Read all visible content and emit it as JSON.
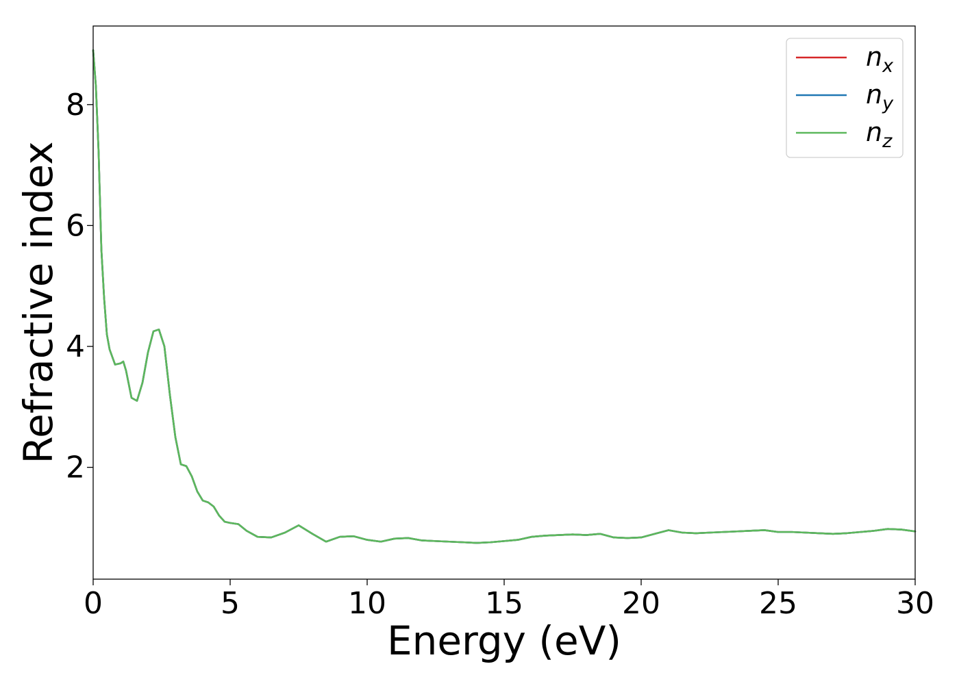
{
  "chart_data": {
    "type": "line",
    "title": "",
    "xlabel": "Energy (eV)",
    "ylabel": "Refractive index",
    "xlim": [
      0,
      30
    ],
    "ylim": [
      0.15,
      9.3
    ],
    "xticks": [
      0,
      5,
      10,
      15,
      20,
      25,
      30
    ],
    "yticks": [
      2,
      4,
      6,
      8
    ],
    "grid": false,
    "legend_position": "top-right",
    "colors": {
      "n_x": "#d62728",
      "n_y": "#1f77b4",
      "n_z": "#5cb85c"
    },
    "legend": [
      {
        "base": "n",
        "sub": "x"
      },
      {
        "base": "n",
        "sub": "y"
      },
      {
        "base": "n",
        "sub": "z"
      }
    ],
    "x": [
      0,
      0.1,
      0.2,
      0.3,
      0.4,
      0.5,
      0.6,
      0.8,
      1.0,
      1.1,
      1.2,
      1.4,
      1.6,
      1.8,
      2.0,
      2.2,
      2.4,
      2.6,
      2.8,
      3.0,
      3.2,
      3.4,
      3.6,
      3.8,
      4.0,
      4.2,
      4.4,
      4.6,
      4.8,
      5.0,
      5.3,
      5.6,
      6.0,
      6.5,
      7.0,
      7.5,
      8.0,
      8.5,
      9.0,
      9.5,
      10.0,
      10.5,
      11.0,
      11.5,
      12.0,
      12.5,
      13.0,
      13.5,
      14.0,
      14.5,
      15.0,
      15.5,
      16.0,
      16.5,
      17.0,
      17.5,
      18.0,
      18.5,
      19.0,
      19.5,
      20.0,
      20.5,
      21.0,
      21.5,
      22.0,
      22.5,
      23.0,
      23.5,
      24.0,
      24.5,
      25.0,
      25.5,
      26.0,
      26.5,
      27.0,
      27.5,
      28.0,
      28.5,
      29.0,
      29.5,
      30.0
    ],
    "series": [
      {
        "name": "n_x",
        "values": [
          8.9,
          8.3,
          7.2,
          5.6,
          4.8,
          4.2,
          3.95,
          3.7,
          3.72,
          3.75,
          3.6,
          3.15,
          3.1,
          3.4,
          3.9,
          4.25,
          4.28,
          4.0,
          3.2,
          2.5,
          2.05,
          2.02,
          1.85,
          1.6,
          1.45,
          1.42,
          1.35,
          1.2,
          1.1,
          1.08,
          1.06,
          0.95,
          0.85,
          0.84,
          0.92,
          1.04,
          0.9,
          0.77,
          0.85,
          0.86,
          0.8,
          0.77,
          0.82,
          0.83,
          0.79,
          0.78,
          0.77,
          0.76,
          0.75,
          0.76,
          0.78,
          0.8,
          0.85,
          0.87,
          0.88,
          0.89,
          0.88,
          0.9,
          0.84,
          0.83,
          0.84,
          0.9,
          0.96,
          0.92,
          0.91,
          0.92,
          0.93,
          0.94,
          0.95,
          0.96,
          0.93,
          0.93,
          0.92,
          0.91,
          0.9,
          0.91,
          0.93,
          0.95,
          0.98,
          0.97,
          0.94
        ]
      },
      {
        "name": "n_y",
        "values": [
          8.9,
          8.3,
          7.2,
          5.6,
          4.8,
          4.2,
          3.95,
          3.7,
          3.72,
          3.75,
          3.6,
          3.15,
          3.1,
          3.4,
          3.9,
          4.25,
          4.28,
          4.0,
          3.2,
          2.5,
          2.05,
          2.02,
          1.85,
          1.6,
          1.45,
          1.42,
          1.35,
          1.2,
          1.1,
          1.08,
          1.06,
          0.95,
          0.85,
          0.84,
          0.92,
          1.04,
          0.9,
          0.77,
          0.85,
          0.86,
          0.8,
          0.77,
          0.82,
          0.83,
          0.79,
          0.78,
          0.77,
          0.76,
          0.75,
          0.76,
          0.78,
          0.8,
          0.85,
          0.87,
          0.88,
          0.89,
          0.88,
          0.9,
          0.84,
          0.83,
          0.84,
          0.9,
          0.96,
          0.92,
          0.91,
          0.92,
          0.93,
          0.94,
          0.95,
          0.96,
          0.93,
          0.93,
          0.92,
          0.91,
          0.9,
          0.91,
          0.93,
          0.95,
          0.98,
          0.97,
          0.94
        ]
      },
      {
        "name": "n_z",
        "values": [
          8.9,
          8.3,
          7.2,
          5.6,
          4.8,
          4.2,
          3.95,
          3.7,
          3.72,
          3.75,
          3.6,
          3.15,
          3.1,
          3.4,
          3.9,
          4.25,
          4.28,
          4.0,
          3.2,
          2.5,
          2.05,
          2.02,
          1.85,
          1.6,
          1.45,
          1.42,
          1.35,
          1.2,
          1.1,
          1.08,
          1.06,
          0.95,
          0.85,
          0.84,
          0.92,
          1.04,
          0.9,
          0.77,
          0.85,
          0.86,
          0.8,
          0.77,
          0.82,
          0.83,
          0.79,
          0.78,
          0.77,
          0.76,
          0.75,
          0.76,
          0.78,
          0.8,
          0.85,
          0.87,
          0.88,
          0.89,
          0.88,
          0.9,
          0.84,
          0.83,
          0.84,
          0.9,
          0.96,
          0.92,
          0.91,
          0.92,
          0.93,
          0.94,
          0.95,
          0.96,
          0.93,
          0.93,
          0.92,
          0.91,
          0.9,
          0.91,
          0.93,
          0.95,
          0.98,
          0.97,
          0.94
        ]
      }
    ]
  }
}
